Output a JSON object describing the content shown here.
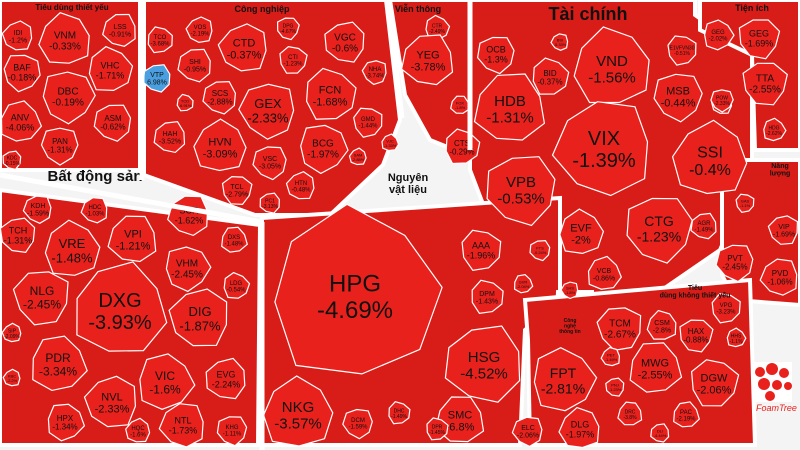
{
  "colors": {
    "down": "#e8211d",
    "up": "#4a9fe0",
    "border": "#ffffff",
    "label": "#111111"
  },
  "logo": {
    "text": "FoamTree"
  },
  "chart_data": {
    "type": "treemap",
    "title": "",
    "groups": [
      {
        "name": "Tiêu dùng thiết yếu",
        "items": [
          {
            "t": "IDI",
            "v": "-1.2%"
          },
          {
            "t": "VNM",
            "v": "-0.33%"
          },
          {
            "t": "LSS",
            "v": "-0.91%"
          },
          {
            "t": "BAF",
            "v": "-0.18%"
          },
          {
            "t": "VHC",
            "v": "-1.71%"
          },
          {
            "t": "DBC",
            "v": "-0.19%"
          },
          {
            "t": "ANV",
            "v": "-4.06%"
          },
          {
            "t": "ASM",
            "v": "-0.62%"
          },
          {
            "t": "PAN",
            "v": "-1.31%"
          },
          {
            "t": "KDC",
            "v": "-0.15%"
          }
        ]
      },
      {
        "name": "Công nghiệp",
        "items": [
          {
            "t": "TCO",
            "v": "-3.68%"
          },
          {
            "t": "VOS",
            "v": "-2.19%"
          },
          {
            "t": "CTD",
            "v": "-0.37%"
          },
          {
            "t": "DPG",
            "v": "-4.67%"
          },
          {
            "t": "VGC",
            "v": "-0.6%"
          },
          {
            "t": "VTP",
            "v": "6.98%"
          },
          {
            "t": "SHI",
            "v": "-0.95%"
          },
          {
            "t": "CTI",
            "v": "-1.23%"
          },
          {
            "t": "FCN",
            "v": "-1.68%"
          },
          {
            "t": "NHA",
            "v": "-3.74%"
          },
          {
            "t": "SCS",
            "v": "-2.88%"
          },
          {
            "t": "GEX",
            "v": "-2.33%"
          },
          {
            "t": "TCD",
            "v": "-6.91%"
          },
          {
            "t": "HAH",
            "v": "-3.52%"
          },
          {
            "t": "HVN",
            "v": "-3.09%"
          },
          {
            "t": "BCG",
            "v": "-1.97%"
          },
          {
            "t": "GMD",
            "v": "-1.44%"
          },
          {
            "t": "VSC",
            "v": "-3.05%"
          },
          {
            "t": "TCL",
            "v": "-2.79%"
          },
          {
            "t": "HTN",
            "v": "-0.48%"
          },
          {
            "t": "PC1",
            "v": "-3.13%"
          },
          {
            "t": "SAM",
            "v": "-2.88%"
          },
          {
            "t": "VJC",
            "v": "-1.33%"
          }
        ]
      },
      {
        "name": "Viễn thông",
        "items": [
          {
            "t": "CTR",
            "v": "-2.49%"
          },
          {
            "t": "YEG",
            "v": "-3.78%"
          },
          {
            "t": "FOX",
            "v": "-1.8%"
          }
        ]
      },
      {
        "name": "Tài chính",
        "items": [
          {
            "t": "BSI",
            "v": "-5.33%"
          },
          {
            "t": "OCB",
            "v": "-1.3%"
          },
          {
            "t": "VND",
            "v": "-1.56%"
          },
          {
            "t": "E1VFVN30",
            "v": "-0.51%"
          },
          {
            "t": "BID",
            "v": "-0.37%"
          },
          {
            "t": "HDB",
            "v": "-1.31%"
          },
          {
            "t": "MSB",
            "v": "-0.44%"
          },
          {
            "t": "APG",
            "v": "-3.11%"
          },
          {
            "t": "VIX",
            "v": "-1.39%"
          },
          {
            "t": "SSI",
            "v": "-0.4%"
          },
          {
            "t": "CTS",
            "v": "-0.29%"
          },
          {
            "t": "VPB",
            "v": "-0.53%"
          },
          {
            "t": "EVF",
            "v": "-2%"
          },
          {
            "t": "CTG",
            "v": "-1.23%"
          },
          {
            "t": "FTS",
            "v": "-0.24%"
          },
          {
            "t": "AGR",
            "v": "-1.49%"
          },
          {
            "t": "VCB",
            "v": "-0.86%"
          },
          {
            "t": "SHS",
            "v": "-1.8%"
          }
        ]
      },
      {
        "name": "Tiện ích",
        "items": [
          {
            "t": "GEG",
            "v": "-2.02%"
          },
          {
            "t": "GEG",
            "v": "-1.69%"
          },
          {
            "t": "TTA",
            "v": "-2.55%"
          },
          {
            "t": "POW",
            "v": "-2.33%"
          },
          {
            "t": "HDG",
            "v": "-2.62%"
          }
        ]
      },
      {
        "name": "Năng lượng",
        "items": [
          {
            "t": "VIP",
            "v": "-1.69%"
          },
          {
            "t": "PVT",
            "v": "-2.45%"
          },
          {
            "t": "PVD",
            "v": "-1.06%"
          },
          {
            "t": "GAS",
            "v": "-1.1%"
          }
        ]
      },
      {
        "name": "Bất động sản",
        "items": [
          {
            "t": "KDH",
            "v": "-1.59%"
          },
          {
            "t": "HDC",
            "v": "-1.03%"
          },
          {
            "t": "TCH",
            "v": "-1.31%"
          },
          {
            "t": "VPI",
            "v": "-1.21%"
          },
          {
            "t": "SCR",
            "v": "-1.62%"
          },
          {
            "t": "VRE",
            "v": "-1.48%"
          },
          {
            "t": "DXS",
            "v": "-1.48%"
          },
          {
            "t": "VHM",
            "v": "-2.45%"
          },
          {
            "t": "NLG",
            "v": "-2.45%"
          },
          {
            "t": "DXG",
            "v": "-3.93%"
          },
          {
            "t": "LDG",
            "v": "-0.54%"
          },
          {
            "t": "DIG",
            "v": "-1.87%"
          },
          {
            "t": "SIP",
            "v": "-2.09%"
          },
          {
            "t": "PDR",
            "v": "-3.34%"
          },
          {
            "t": "KBC",
            "v": "-2.2%"
          },
          {
            "t": "VIC",
            "v": "-1.6%"
          },
          {
            "t": "EVG",
            "v": "-2.24%"
          },
          {
            "t": "NVL",
            "v": "-2.33%"
          },
          {
            "t": "HPX",
            "v": "-1.34%"
          },
          {
            "t": "HQC",
            "v": "-1.6%"
          },
          {
            "t": "NTL",
            "v": "-1.73%"
          },
          {
            "t": "KHG",
            "v": "-1.11%"
          }
        ]
      },
      {
        "name": "Nguyên vật liệu",
        "items": [
          {
            "t": "HPG",
            "v": "-4.69%"
          },
          {
            "t": "AAA",
            "v": "-1.96%"
          },
          {
            "t": "DPM",
            "v": "-1.43%"
          },
          {
            "t": "GVR",
            "v": "-2.04%"
          },
          {
            "t": "HSG",
            "v": "-4.52%"
          },
          {
            "t": "NKG",
            "v": "-3.57%"
          },
          {
            "t": "SMC",
            "v": "-6.8%"
          },
          {
            "t": "DCM",
            "v": "-1.59%"
          },
          {
            "t": "DHC",
            "v": "-1.49%"
          },
          {
            "t": "DPR",
            "v": "-1.45%"
          }
        ]
      },
      {
        "name": "Công nghệ thông tin",
        "items": []
      },
      {
        "name": "Tiêu dùng không thiết yếu",
        "items": [
          {
            "t": "FPT",
            "v": "-2.81%"
          },
          {
            "t": "ELC",
            "v": "-2.06%"
          },
          {
            "t": "DLG",
            "v": "-1.97%"
          },
          {
            "t": "TCM",
            "v": "-2.67%"
          },
          {
            "t": "CSM",
            "v": "-2.8%"
          },
          {
            "t": "VPG",
            "v": "-3.23%"
          },
          {
            "t": "HAX",
            "v": "-0.88%"
          },
          {
            "t": "HHS",
            "v": "-1.1%"
          },
          {
            "t": "MWG",
            "v": "-2.55%"
          },
          {
            "t": "DGW",
            "v": "-2.06%"
          },
          {
            "t": "PET",
            "v": "-1.49%"
          },
          {
            "t": "PNJ",
            "v": "-1.23%"
          },
          {
            "t": "DRC",
            "v": "-3.8%"
          },
          {
            "t": "PAC",
            "v": "-2.19%"
          },
          {
            "t": "DLI",
            "v": "-4.44%"
          }
        ]
      }
    ]
  }
}
